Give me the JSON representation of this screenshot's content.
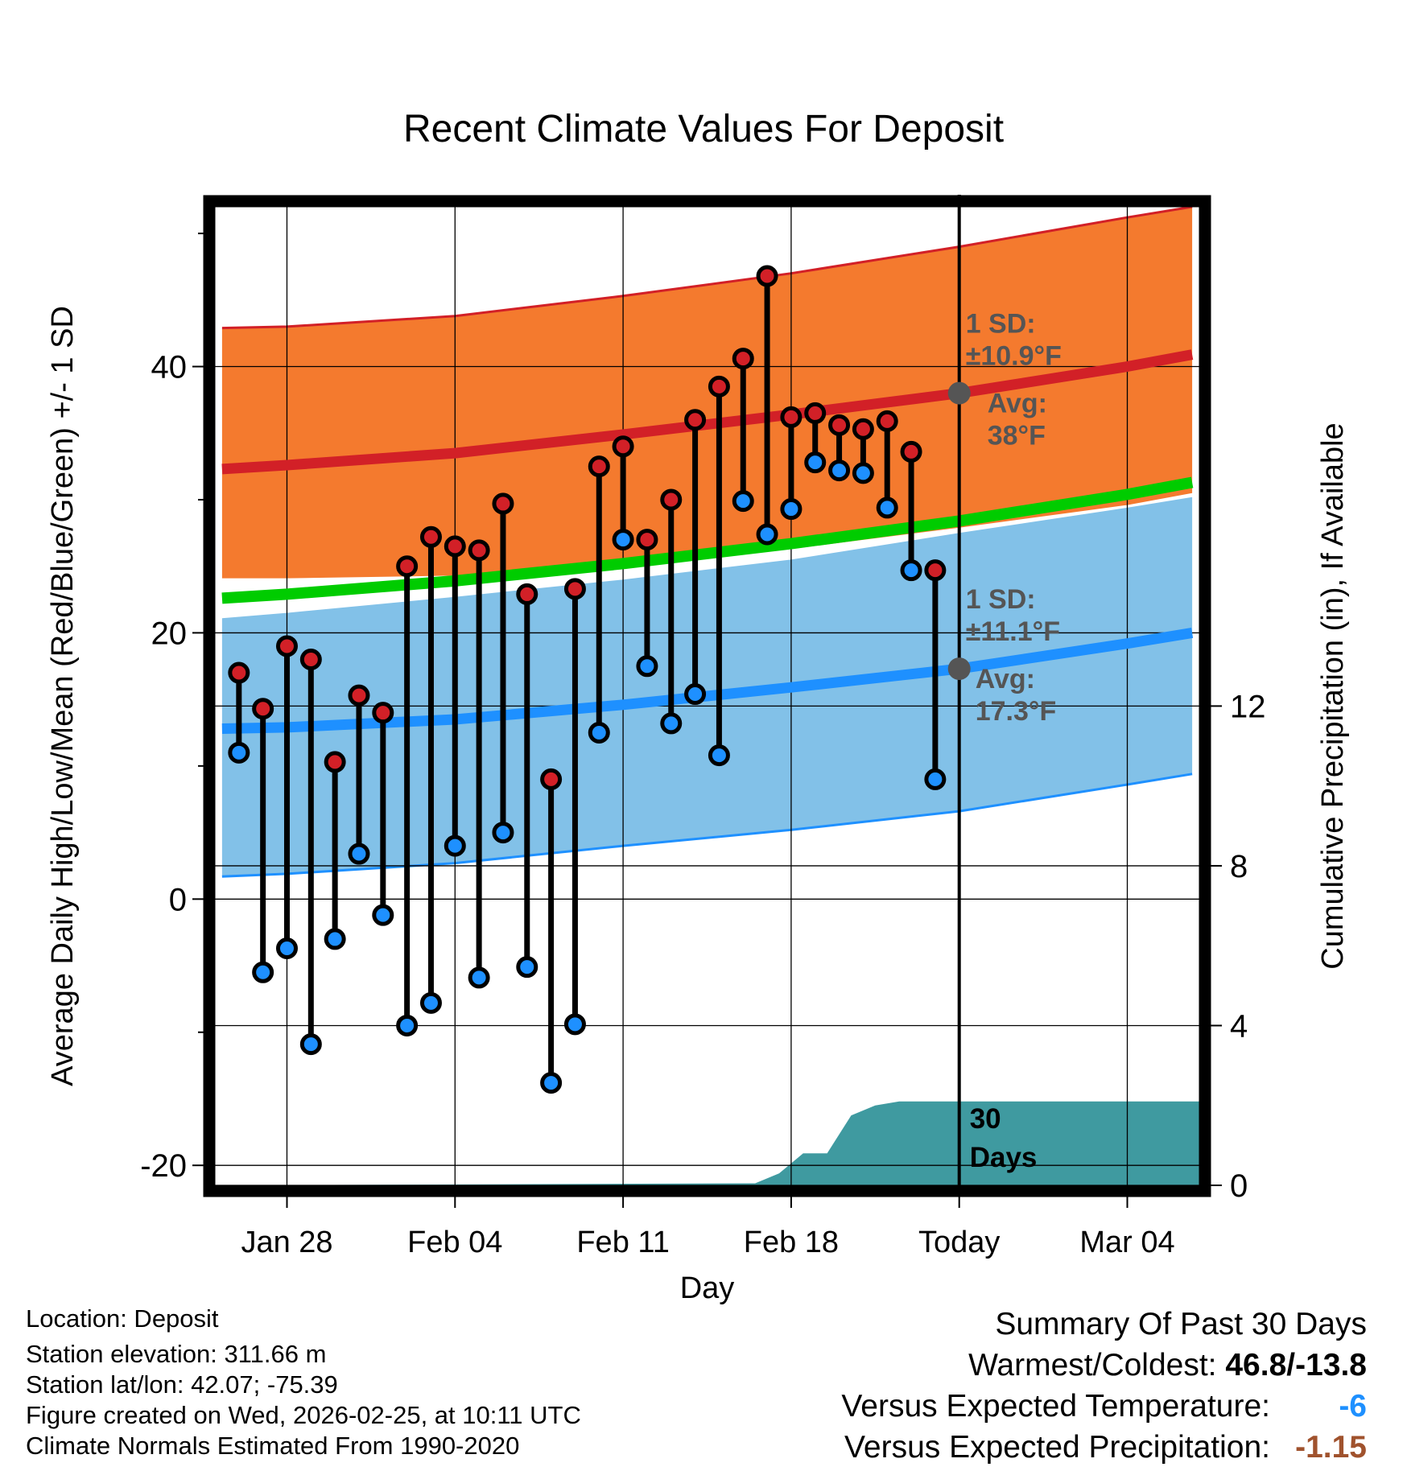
{
  "chart_data": {
    "type": "scatter",
    "title": "Recent Climate Values For Deposit",
    "xlabel": "Day",
    "ylabel": "Average Daily High/Low/Mean (Red/Blue/Green) +/- 1 SD",
    "ylabel_right": "Cumulative Precipitation (in), If Available",
    "xlim": [
      -3,
      38
    ],
    "ylim": [
      -21.5,
      52
    ],
    "ylim_right": [
      0,
      24.5
    ],
    "x_ticks": [
      {
        "x": 0,
        "label": "Jan 28"
      },
      {
        "x": 7,
        "label": "Feb 04"
      },
      {
        "x": 14,
        "label": "Feb 11"
      },
      {
        "x": 21,
        "label": "Feb 18"
      },
      {
        "x": 28,
        "label": "Today"
      },
      {
        "x": 35,
        "label": "Mar 04"
      }
    ],
    "y_ticks": [
      -20,
      0,
      20,
      40
    ],
    "y_minor_ticks": [
      -10,
      10,
      30,
      50
    ],
    "y_ticks_right": [
      0,
      4,
      8,
      12
    ],
    "today_x": 28,
    "normals": {
      "x": [
        -2.7,
        0,
        7,
        14,
        21,
        28,
        35,
        37.7
      ],
      "high_avg": [
        32.3,
        32.6,
        33.5,
        34.9,
        36.4,
        38.0,
        40.0,
        40.9
      ],
      "high_upper": [
        42.9,
        43.0,
        43.8,
        45.3,
        47.0,
        49.0,
        51.2,
        52.0
      ],
      "high_lower": [
        24.1,
        24.1,
        24.3,
        25.0,
        26.3,
        27.9,
        29.6,
        30.5
      ],
      "mean_avg": [
        22.6,
        22.9,
        23.9,
        25.2,
        26.7,
        28.4,
        30.4,
        31.3
      ],
      "low_avg": [
        12.8,
        12.9,
        13.5,
        14.6,
        15.9,
        17.3,
        19.2,
        20.0
      ],
      "low_upper": [
        21.1,
        21.5,
        22.7,
        24.0,
        25.5,
        27.5,
        29.4,
        30.2
      ],
      "low_lower": [
        1.7,
        1.9,
        2.7,
        4.0,
        5.2,
        6.6,
        8.6,
        9.4
      ]
    },
    "observed": {
      "x": [
        -2,
        -1,
        0,
        1,
        2,
        3,
        4,
        5,
        6,
        7,
        8,
        9,
        10,
        11,
        12,
        13,
        14,
        15,
        16,
        17,
        18,
        19,
        20,
        21,
        22,
        23,
        24,
        25,
        26,
        27
      ],
      "highs": [
        17.0,
        14.3,
        19.0,
        18.0,
        10.3,
        15.3,
        14.0,
        25.0,
        27.2,
        26.5,
        26.2,
        29.7,
        22.9,
        9.0,
        23.3,
        32.5,
        34.0,
        27.0,
        30.0,
        36.0,
        38.5,
        40.6,
        46.8,
        36.2,
        36.5,
        35.6,
        35.3,
        35.9,
        33.6,
        24.7
      ],
      "lows": [
        11.0,
        -5.5,
        -3.7,
        -10.9,
        -3.0,
        3.4,
        -1.2,
        -9.5,
        -7.8,
        4.0,
        -5.9,
        5.0,
        -5.1,
        -13.8,
        -9.4,
        12.5,
        27.0,
        17.5,
        13.2,
        15.4,
        10.8,
        29.9,
        27.4,
        29.3,
        32.8,
        32.2,
        32.0,
        29.4,
        24.7,
        9.0
      ]
    },
    "precip": {
      "x": [
        -3,
        19.5,
        20.5,
        21.5,
        22.5,
        23.5,
        24.5,
        25.5,
        26.5,
        27,
        38
      ],
      "cum": [
        0,
        0.05,
        0.3,
        0.8,
        0.8,
        1.75,
        2.0,
        2.1,
        2.1,
        2.1,
        2.1
      ]
    },
    "annotations": {
      "high_sd": "1 SD:",
      "high_sd_value": "±10.9°F",
      "high_avg_label": "Avg:",
      "high_avg_value": "38°F",
      "high_avg": 38.0,
      "low_sd": "1 SD:",
      "low_sd_value": "±11.1°F",
      "low_avg_label": "Avg:",
      "low_avg_value": "17.3°F",
      "low_avg": 17.3,
      "period": "30",
      "period_unit": "Days"
    },
    "colors": {
      "high_band": "#f47a2e",
      "high_line": "#d22027",
      "low_band": "#82c1e8",
      "low_line": "#1e90ff",
      "mean_line": "#00cc00",
      "overlap": "#9a0d14",
      "precip": "#3f9aa0",
      "high_dot": "#d22027",
      "low_dot": "#1e90ff",
      "annot": "#555555"
    }
  },
  "footer": {
    "location": "Location: Deposit",
    "elevation": "Station elevation: 311.66 m",
    "latlon": "Station lat/lon: 42.07; -75.39",
    "created": "Figure created on Wed, 2026-02-25, at 10:11 UTC",
    "normals": "Climate Normals Estimated From 1990-2020"
  },
  "summary": {
    "title": "Summary Of Past 30 Days",
    "warm_cold_label": "Warmest/Coldest: ",
    "warm_cold_value": "46.8/-13.8",
    "temp_label": "Versus Expected Temperature:",
    "temp_value": "-6",
    "temp_color": "#1e90ff",
    "precip_label": "Versus Expected Precipitation:",
    "precip_value": "-1.15",
    "precip_color": "#a0522d"
  }
}
